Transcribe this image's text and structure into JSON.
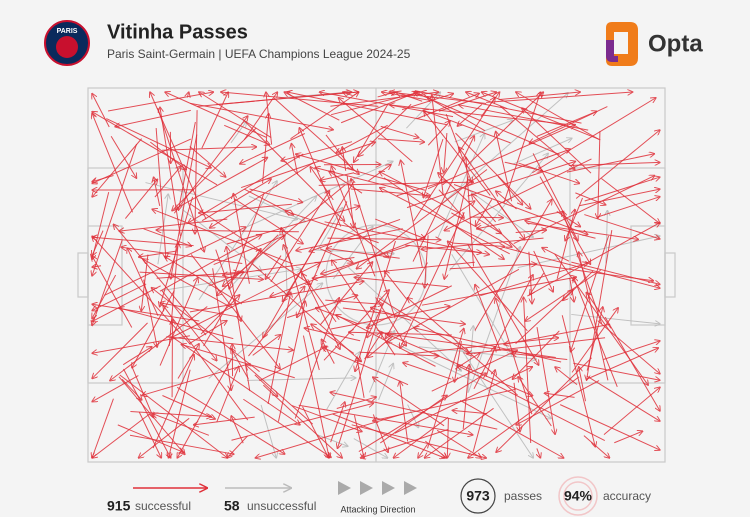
{
  "header": {
    "badge": "PARIS",
    "title": "Vitinha Passes",
    "subtitle": "Paris Saint-Germain | UEFA Champions League 2024-25",
    "logo": "Opta"
  },
  "legend": {
    "successful_count": "915",
    "successful_label": "successful",
    "unsuccessful_count": "58",
    "unsuccessful_label": "unsuccessful",
    "direction_label": "Attacking Direction"
  },
  "stats": {
    "passes_value": "973",
    "passes_label": "passes",
    "accuracy_value": "94%",
    "accuracy_label": "accuracy"
  }
}
